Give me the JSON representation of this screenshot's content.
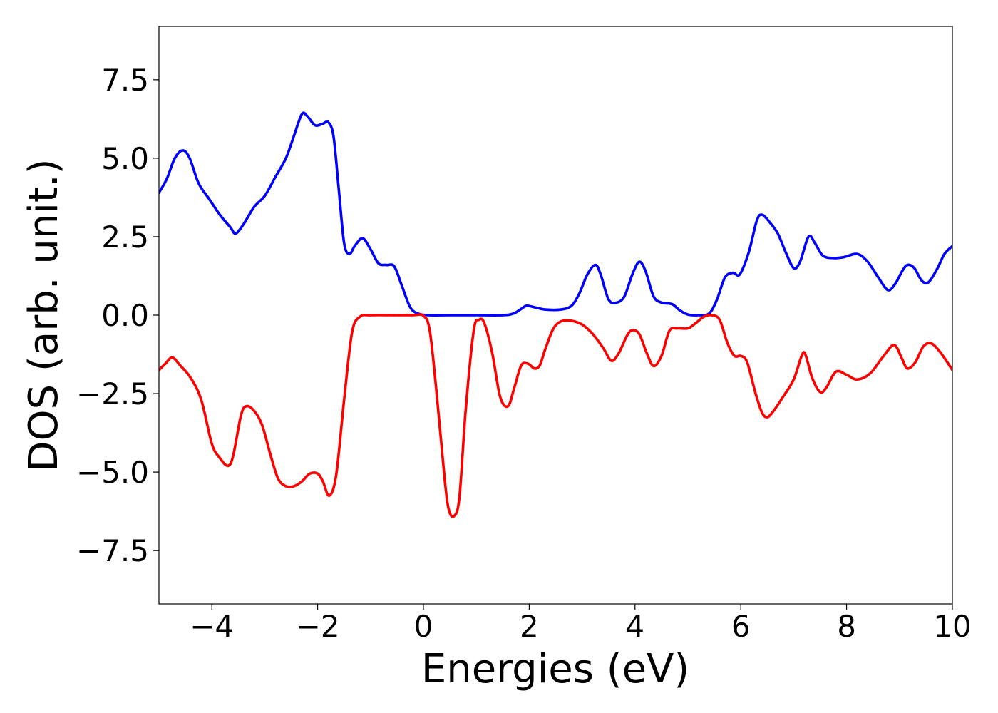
{
  "chart_data": {
    "type": "line",
    "title": "",
    "xlabel": "Energies (eV)",
    "ylabel": "DOS (arb. unit.)",
    "xlim": [
      -5,
      10
    ],
    "ylim": [
      -9.2,
      9.2
    ],
    "grid": false,
    "legend": "none",
    "x_ticks": [
      -4,
      -2,
      0,
      2,
      4,
      6,
      8,
      10
    ],
    "x_tick_labels": [
      "−4",
      "−2",
      "0",
      "2",
      "4",
      "6",
      "8",
      "10"
    ],
    "y_ticks": [
      7.5,
      5.0,
      2.5,
      0.0,
      -2.5,
      -5.0,
      -7.5
    ],
    "y_tick_labels": [
      "7.5",
      "5.0",
      "2.5",
      "0.0",
      "−2.5",
      "−5.0",
      "−7.5"
    ],
    "series": [
      {
        "color": "#0000ff",
        "points": [
          [
            -5.0,
            3.9
          ],
          [
            -4.85,
            4.35
          ],
          [
            -4.7,
            5.0
          ],
          [
            -4.55,
            5.25
          ],
          [
            -4.42,
            5.0
          ],
          [
            -4.25,
            4.2
          ],
          [
            -4.05,
            3.7
          ],
          [
            -3.85,
            3.2
          ],
          [
            -3.65,
            2.8
          ],
          [
            -3.55,
            2.6
          ],
          [
            -3.4,
            2.9
          ],
          [
            -3.2,
            3.45
          ],
          [
            -3.0,
            3.8
          ],
          [
            -2.8,
            4.4
          ],
          [
            -2.6,
            5.0
          ],
          [
            -2.45,
            5.7
          ],
          [
            -2.3,
            6.4
          ],
          [
            -2.2,
            6.35
          ],
          [
            -2.05,
            6.05
          ],
          [
            -1.9,
            6.1
          ],
          [
            -1.8,
            6.15
          ],
          [
            -1.7,
            5.7
          ],
          [
            -1.6,
            4.0
          ],
          [
            -1.5,
            2.3
          ],
          [
            -1.4,
            1.95
          ],
          [
            -1.3,
            2.2
          ],
          [
            -1.15,
            2.45
          ],
          [
            -1.0,
            2.1
          ],
          [
            -0.85,
            1.65
          ],
          [
            -0.7,
            1.6
          ],
          [
            -0.55,
            1.55
          ],
          [
            -0.4,
            0.9
          ],
          [
            -0.25,
            0.25
          ],
          [
            -0.1,
            0.05
          ],
          [
            0.1,
            0.0
          ],
          [
            0.5,
            0.0
          ],
          [
            1.0,
            0.0
          ],
          [
            1.5,
            0.0
          ],
          [
            1.7,
            0.05
          ],
          [
            1.85,
            0.2
          ],
          [
            1.95,
            0.3
          ],
          [
            2.1,
            0.25
          ],
          [
            2.3,
            0.18
          ],
          [
            2.6,
            0.18
          ],
          [
            2.8,
            0.3
          ],
          [
            2.95,
            0.7
          ],
          [
            3.1,
            1.3
          ],
          [
            3.25,
            1.6
          ],
          [
            3.35,
            1.3
          ],
          [
            3.5,
            0.5
          ],
          [
            3.65,
            0.4
          ],
          [
            3.8,
            0.6
          ],
          [
            3.95,
            1.3
          ],
          [
            4.08,
            1.7
          ],
          [
            4.2,
            1.4
          ],
          [
            4.35,
            0.6
          ],
          [
            4.5,
            0.4
          ],
          [
            4.7,
            0.35
          ],
          [
            4.85,
            0.15
          ],
          [
            5.0,
            0.02
          ],
          [
            5.2,
            0.0
          ],
          [
            5.4,
            0.05
          ],
          [
            5.55,
            0.5
          ],
          [
            5.7,
            1.2
          ],
          [
            5.85,
            1.35
          ],
          [
            5.98,
            1.3
          ],
          [
            6.15,
            2.0
          ],
          [
            6.3,
            3.0
          ],
          [
            6.4,
            3.2
          ],
          [
            6.55,
            2.95
          ],
          [
            6.7,
            2.6
          ],
          [
            6.85,
            2.0
          ],
          [
            7.0,
            1.5
          ],
          [
            7.12,
            1.7
          ],
          [
            7.28,
            2.5
          ],
          [
            7.4,
            2.3
          ],
          [
            7.55,
            1.9
          ],
          [
            7.75,
            1.82
          ],
          [
            7.95,
            1.85
          ],
          [
            8.2,
            1.95
          ],
          [
            8.4,
            1.7
          ],
          [
            8.6,
            1.2
          ],
          [
            8.78,
            0.8
          ],
          [
            8.92,
            1.0
          ],
          [
            9.05,
            1.4
          ],
          [
            9.15,
            1.6
          ],
          [
            9.28,
            1.5
          ],
          [
            9.42,
            1.1
          ],
          [
            9.55,
            1.05
          ],
          [
            9.72,
            1.5
          ],
          [
            9.85,
            1.95
          ],
          [
            10.0,
            2.2
          ]
        ]
      },
      {
        "color": "#ff0000",
        "points": [
          [
            -5.0,
            -1.75
          ],
          [
            -4.88,
            -1.55
          ],
          [
            -4.75,
            -1.35
          ],
          [
            -4.6,
            -1.6
          ],
          [
            -4.4,
            -2.0
          ],
          [
            -4.2,
            -2.7
          ],
          [
            -4.0,
            -4.1
          ],
          [
            -3.85,
            -4.55
          ],
          [
            -3.7,
            -4.8
          ],
          [
            -3.6,
            -4.5
          ],
          [
            -3.45,
            -3.2
          ],
          [
            -3.35,
            -2.9
          ],
          [
            -3.2,
            -3.05
          ],
          [
            -3.05,
            -3.5
          ],
          [
            -2.9,
            -4.4
          ],
          [
            -2.75,
            -5.2
          ],
          [
            -2.6,
            -5.45
          ],
          [
            -2.45,
            -5.45
          ],
          [
            -2.3,
            -5.3
          ],
          [
            -2.15,
            -5.05
          ],
          [
            -2.0,
            -5.05
          ],
          [
            -1.9,
            -5.3
          ],
          [
            -1.78,
            -5.75
          ],
          [
            -1.65,
            -5.1
          ],
          [
            -1.5,
            -2.7
          ],
          [
            -1.35,
            -0.55
          ],
          [
            -1.2,
            -0.05
          ],
          [
            -1.0,
            0.0
          ],
          [
            -0.5,
            0.0
          ],
          [
            -0.2,
            0.0
          ],
          [
            0.0,
            -0.02
          ],
          [
            0.12,
            -0.5
          ],
          [
            0.25,
            -2.5
          ],
          [
            0.4,
            -5.2
          ],
          [
            0.48,
            -6.2
          ],
          [
            0.58,
            -6.4
          ],
          [
            0.68,
            -5.8
          ],
          [
            0.8,
            -3.0
          ],
          [
            0.95,
            -0.5
          ],
          [
            1.05,
            -0.15
          ],
          [
            1.15,
            -0.25
          ],
          [
            1.3,
            -1.2
          ],
          [
            1.45,
            -2.6
          ],
          [
            1.6,
            -2.9
          ],
          [
            1.72,
            -2.3
          ],
          [
            1.85,
            -1.6
          ],
          [
            1.98,
            -1.55
          ],
          [
            2.1,
            -1.7
          ],
          [
            2.2,
            -1.6
          ],
          [
            2.3,
            -1.1
          ],
          [
            2.45,
            -0.45
          ],
          [
            2.6,
            -0.2
          ],
          [
            2.8,
            -0.18
          ],
          [
            3.0,
            -0.3
          ],
          [
            3.2,
            -0.6
          ],
          [
            3.4,
            -1.05
          ],
          [
            3.55,
            -1.45
          ],
          [
            3.68,
            -1.25
          ],
          [
            3.85,
            -0.65
          ],
          [
            3.95,
            -0.48
          ],
          [
            4.08,
            -0.6
          ],
          [
            4.22,
            -1.2
          ],
          [
            4.35,
            -1.62
          ],
          [
            4.5,
            -1.3
          ],
          [
            4.65,
            -0.5
          ],
          [
            4.8,
            -0.42
          ],
          [
            5.0,
            -0.42
          ],
          [
            5.15,
            -0.25
          ],
          [
            5.3,
            -0.05
          ],
          [
            5.45,
            0.0
          ],
          [
            5.6,
            -0.15
          ],
          [
            5.75,
            -0.9
          ],
          [
            5.88,
            -1.3
          ],
          [
            6.0,
            -1.3
          ],
          [
            6.12,
            -1.5
          ],
          [
            6.28,
            -2.5
          ],
          [
            6.4,
            -3.1
          ],
          [
            6.5,
            -3.25
          ],
          [
            6.62,
            -3.05
          ],
          [
            6.8,
            -2.6
          ],
          [
            7.0,
            -2.05
          ],
          [
            7.15,
            -1.3
          ],
          [
            7.22,
            -1.25
          ],
          [
            7.35,
            -2.0
          ],
          [
            7.5,
            -2.45
          ],
          [
            7.62,
            -2.3
          ],
          [
            7.8,
            -1.8
          ],
          [
            8.0,
            -1.9
          ],
          [
            8.2,
            -2.05
          ],
          [
            8.45,
            -1.85
          ],
          [
            8.7,
            -1.3
          ],
          [
            8.9,
            -0.95
          ],
          [
            9.05,
            -1.4
          ],
          [
            9.15,
            -1.7
          ],
          [
            9.3,
            -1.5
          ],
          [
            9.45,
            -1.0
          ],
          [
            9.6,
            -0.9
          ],
          [
            9.78,
            -1.2
          ],
          [
            10.0,
            -1.75
          ]
        ]
      }
    ]
  }
}
